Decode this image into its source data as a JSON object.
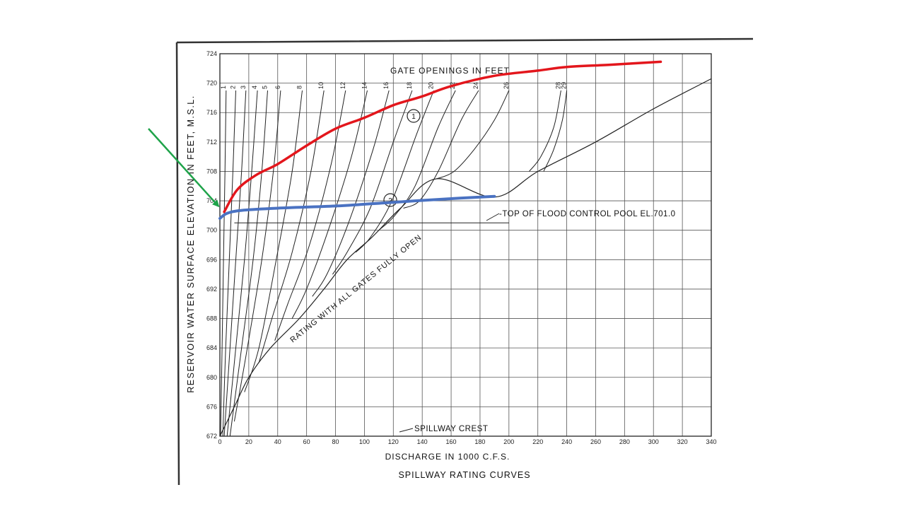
{
  "chart_data": {
    "type": "line",
    "title": "SPILLWAY RATING CURVES",
    "xlabel": "DISCHARGE IN 1000 C.F.S.",
    "ylabel": "RESERVOIR WATER SURFACE ELEVATION IN FEET, M.S.L.",
    "xlim": [
      0,
      340
    ],
    "ylim": [
      672,
      724
    ],
    "x_ticks": [
      0,
      20,
      40,
      60,
      80,
      100,
      120,
      140,
      160,
      180,
      200,
      220,
      240,
      260,
      280,
      300,
      320,
      340
    ],
    "y_ticks": [
      672,
      676,
      680,
      684,
      688,
      692,
      696,
      700,
      704,
      708,
      712,
      716,
      720,
      724
    ],
    "grid": true,
    "gate_openings_label": "GATE OPENINGS IN FEET",
    "gate_openings": [
      "1",
      "2",
      "3",
      "4",
      "5",
      "6",
      "8",
      "10",
      "12",
      "14",
      "16",
      "18",
      "20",
      "22",
      "24",
      "26",
      "28",
      "29"
    ],
    "gate_curves": [
      {
        "opening": "1",
        "points": [
          [
            0.5,
            672
          ],
          [
            1.5,
            684
          ],
          [
            2.5,
            696
          ],
          [
            3.5,
            708
          ],
          [
            4.3,
            719
          ]
        ]
      },
      {
        "opening": "2",
        "points": [
          [
            2,
            672
          ],
          [
            4,
            684
          ],
          [
            6.5,
            696
          ],
          [
            9,
            708
          ],
          [
            11,
            719
          ]
        ]
      },
      {
        "opening": "3",
        "points": [
          [
            3,
            672
          ],
          [
            7,
            684
          ],
          [
            11,
            696
          ],
          [
            15,
            708
          ],
          [
            18,
            719
          ]
        ]
      },
      {
        "opening": "4",
        "points": [
          [
            5,
            672
          ],
          [
            11,
            684
          ],
          [
            17,
            696
          ],
          [
            22,
            708
          ],
          [
            26,
            719
          ]
        ]
      },
      {
        "opening": "5",
        "points": [
          [
            7,
            672
          ],
          [
            15,
            684
          ],
          [
            23,
            696
          ],
          [
            29,
            708
          ],
          [
            33,
            719
          ]
        ]
      },
      {
        "opening": "6",
        "points": [
          [
            10,
            674
          ],
          [
            19,
            684
          ],
          [
            29,
            696
          ],
          [
            37,
            708
          ],
          [
            42,
            719
          ]
        ]
      },
      {
        "opening": "8",
        "points": [
          [
            17,
            678
          ],
          [
            27,
            684
          ],
          [
            39,
            696
          ],
          [
            50,
            708
          ],
          [
            57,
            719
          ]
        ]
      },
      {
        "opening": "10",
        "points": [
          [
            27,
            682
          ],
          [
            36,
            688
          ],
          [
            50,
            697
          ],
          [
            63,
            708
          ],
          [
            72,
            719
          ]
        ]
      },
      {
        "opening": "12",
        "points": [
          [
            38,
            685
          ],
          [
            47,
            690
          ],
          [
            62,
            698
          ],
          [
            77,
            709
          ],
          [
            87,
            719
          ]
        ]
      },
      {
        "opening": "14",
        "points": [
          [
            50,
            688
          ],
          [
            60,
            692
          ],
          [
            75,
            700
          ],
          [
            91,
            710
          ],
          [
            102,
            719
          ]
        ]
      },
      {
        "opening": "16",
        "points": [
          [
            64,
            691
          ],
          [
            74,
            694
          ],
          [
            89,
            701
          ],
          [
            106,
            711
          ],
          [
            117,
            719
          ]
        ]
      },
      {
        "opening": "18",
        "points": [
          [
            78,
            694
          ],
          [
            88,
            697
          ],
          [
            104,
            703
          ],
          [
            120,
            712
          ],
          [
            133,
            719
          ]
        ]
      },
      {
        "opening": "20",
        "points": [
          [
            94,
            697
          ],
          [
            104,
            699
          ],
          [
            119,
            704
          ],
          [
            136,
            713
          ],
          [
            148,
            719
          ]
        ]
      },
      {
        "opening": "22",
        "points": [
          [
            110,
            700
          ],
          [
            121,
            702
          ],
          [
            135,
            706
          ],
          [
            151,
            714
          ],
          [
            163,
            719
          ]
        ]
      },
      {
        "opening": "24",
        "points": [
          [
            127,
            703
          ],
          [
            138,
            704
          ],
          [
            151,
            708
          ],
          [
            167,
            715
          ],
          [
            179,
            719
          ]
        ]
      },
      {
        "opening": "26",
        "points": [
          [
            150,
            707
          ],
          [
            162,
            708
          ],
          [
            176,
            711
          ],
          [
            190,
            715
          ],
          [
            200,
            719
          ]
        ]
      },
      {
        "opening": "28",
        "points": [
          [
            214,
            708
          ],
          [
            222,
            710
          ],
          [
            231,
            714
          ],
          [
            236,
            719
          ]
        ]
      },
      {
        "opening": "29",
        "points": [
          [
            224,
            708
          ],
          [
            231,
            711
          ],
          [
            237,
            715
          ],
          [
            240,
            719
          ]
        ]
      }
    ],
    "all_gates_open_curve": {
      "label": "RATING WITH ALL GATES FULLY OPEN",
      "points": [
        [
          0,
          672
        ],
        [
          10,
          676
        ],
        [
          20,
          680
        ],
        [
          35,
          684
        ],
        [
          55,
          688
        ],
        [
          72,
          692
        ],
        [
          88,
          696
        ],
        [
          105,
          699
        ],
        [
          125,
          703
        ],
        [
          150,
          707
        ],
        [
          190,
          704.5
        ],
        [
          220,
          708
        ],
        [
          260,
          712
        ],
        [
          300,
          716.5
        ],
        [
          340,
          720.6
        ]
      ]
    },
    "flood_pool": {
      "label": "-TOP OF FLOOD CONTROL POOL  EL.701.0",
      "elevation": 701
    },
    "spillway_crest_label": "SPILLWAY CREST",
    "circled_marks": [
      "1",
      "2"
    ],
    "annotations": {
      "red_curve": {
        "color": "#e3161c",
        "points": [
          [
            3,
            702.5
          ],
          [
            12,
            705.5
          ],
          [
            25,
            707.5
          ],
          [
            40,
            709
          ],
          [
            60,
            711.5
          ],
          [
            80,
            713.8
          ],
          [
            100,
            715.3
          ],
          [
            120,
            717
          ],
          [
            140,
            718.2
          ],
          [
            160,
            719.6
          ],
          [
            190,
            721
          ],
          [
            220,
            721.7
          ],
          [
            240,
            722.2
          ],
          [
            270,
            722.5
          ],
          [
            305,
            722.9
          ]
        ]
      },
      "blue_curve": {
        "color": "#4a72c2",
        "points": [
          [
            0,
            701.6
          ],
          [
            5,
            702.3
          ],
          [
            15,
            702.7
          ],
          [
            40,
            703
          ],
          [
            80,
            703.3
          ],
          [
            120,
            703.8
          ],
          [
            160,
            704.3
          ],
          [
            190,
            704.6
          ]
        ]
      },
      "arrow": {
        "color": "#1fa34a",
        "target": [
          0,
          702.5
        ]
      }
    },
    "colors": {
      "grid": "#555555",
      "ink": "#222222",
      "border": "#333333"
    }
  }
}
